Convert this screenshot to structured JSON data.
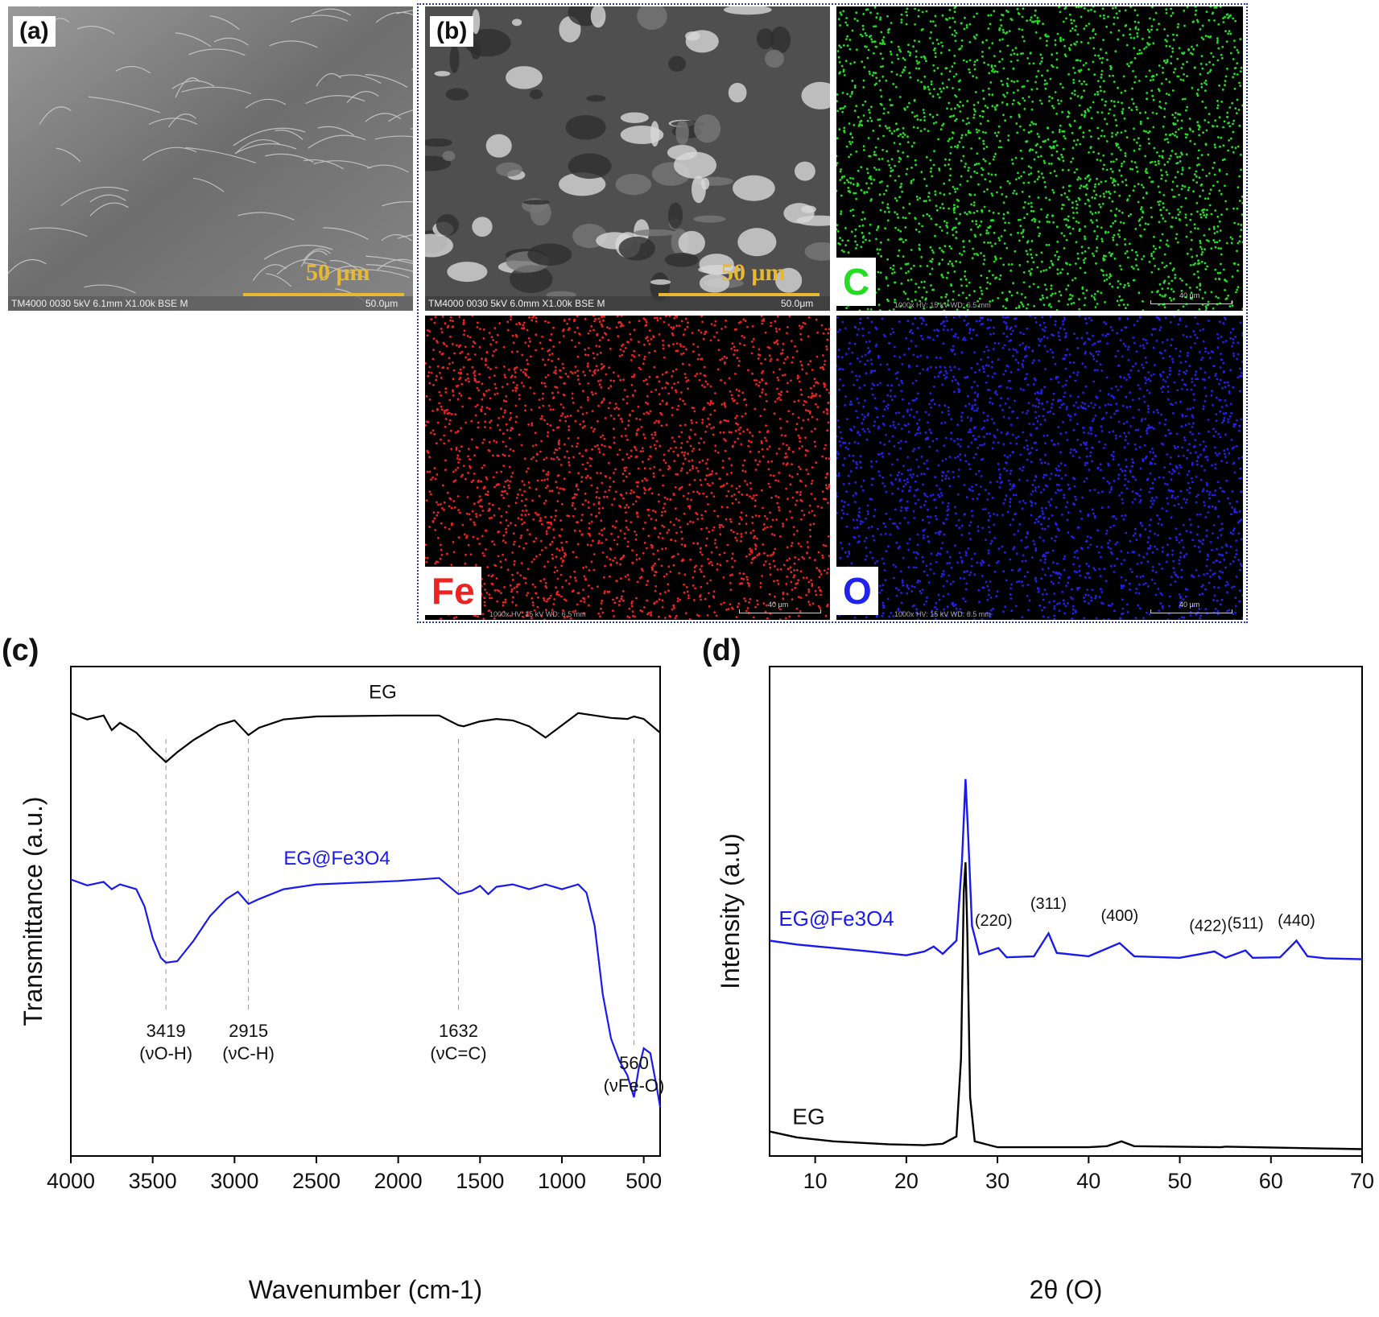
{
  "panel_a": {
    "label": "(a)",
    "scale_text": "50 μm",
    "meta": "TM4000 0030 5kV 6.1mm X1.00k BSE M",
    "meta_scale": "50.0μm"
  },
  "panel_b": {
    "label": "(b)",
    "sem": {
      "scale_text": "50 μm",
      "meta": "TM4000 0030 5kV 6.0mm X1.00k BSE M",
      "meta_scale": "50.0μm"
    },
    "maps": [
      {
        "element": "C",
        "color": "#22dd22",
        "scale": "40 μm",
        "meta": "1000x   HV: 15 kV   WD: 6.5 mm"
      },
      {
        "element": "Fe",
        "color": "#ee2222",
        "scale": "40 μm",
        "meta": "1000x   HV: 15 kV   WD: 6.5 mm"
      },
      {
        "element": "O",
        "color": "#2222ee",
        "scale": "40 μm",
        "meta": "1000x   HV: 15 kV   WD: 6.5 mm"
      }
    ]
  },
  "chart_data": [
    {
      "panel_label": "(c)",
      "type": "line",
      "xlabel": "Wavenumber (cm-1)",
      "ylabel": "Transmittance (a.u.)",
      "xlim": [
        4000,
        400
      ],
      "xticks": [
        4000,
        3500,
        3000,
        2500,
        2000,
        1500,
        1000,
        500
      ],
      "series": [
        {
          "name": "EG",
          "color": "#000000",
          "points": [
            [
              4000,
              0.905
            ],
            [
              3900,
              0.892
            ],
            [
              3800,
              0.9
            ],
            [
              3750,
              0.87
            ],
            [
              3700,
              0.885
            ],
            [
              3600,
              0.865
            ],
            [
              3500,
              0.83
            ],
            [
              3419,
              0.805
            ],
            [
              3350,
              0.825
            ],
            [
              3250,
              0.85
            ],
            [
              3100,
              0.88
            ],
            [
              3000,
              0.89
            ],
            [
              2915,
              0.86
            ],
            [
              2850,
              0.875
            ],
            [
              2700,
              0.892
            ],
            [
              2500,
              0.898
            ],
            [
              2000,
              0.9
            ],
            [
              1750,
              0.9
            ],
            [
              1632,
              0.88
            ],
            [
              1600,
              0.878
            ],
            [
              1500,
              0.888
            ],
            [
              1400,
              0.893
            ],
            [
              1300,
              0.89
            ],
            [
              1200,
              0.878
            ],
            [
              1100,
              0.855
            ],
            [
              1000,
              0.88
            ],
            [
              900,
              0.905
            ],
            [
              800,
              0.9
            ],
            [
              700,
              0.895
            ],
            [
              600,
              0.893
            ],
            [
              560,
              0.898
            ],
            [
              500,
              0.893
            ],
            [
              400,
              0.865
            ]
          ]
        },
        {
          "name": "EG@Fe3O4",
          "color": "#1a1aee",
          "points": [
            [
              4000,
              0.565
            ],
            [
              3900,
              0.553
            ],
            [
              3800,
              0.56
            ],
            [
              3750,
              0.545
            ],
            [
              3700,
              0.555
            ],
            [
              3600,
              0.545
            ],
            [
              3550,
              0.51
            ],
            [
              3500,
              0.445
            ],
            [
              3450,
              0.405
            ],
            [
              3419,
              0.395
            ],
            [
              3350,
              0.398
            ],
            [
              3250,
              0.44
            ],
            [
              3150,
              0.49
            ],
            [
              3050,
              0.525
            ],
            [
              2980,
              0.54
            ],
            [
              2915,
              0.515
            ],
            [
              2850,
              0.525
            ],
            [
              2700,
              0.545
            ],
            [
              2500,
              0.555
            ],
            [
              2000,
              0.562
            ],
            [
              1750,
              0.568
            ],
            [
              1632,
              0.535
            ],
            [
              1550,
              0.542
            ],
            [
              1500,
              0.552
            ],
            [
              1450,
              0.535
            ],
            [
              1400,
              0.55
            ],
            [
              1300,
              0.555
            ],
            [
              1200,
              0.545
            ],
            [
              1100,
              0.555
            ],
            [
              1000,
              0.545
            ],
            [
              900,
              0.555
            ],
            [
              850,
              0.538
            ],
            [
              800,
              0.47
            ],
            [
              750,
              0.33
            ],
            [
              700,
              0.24
            ],
            [
              650,
              0.195
            ],
            [
              600,
              0.165
            ],
            [
              560,
              0.12
            ],
            [
              530,
              0.18
            ],
            [
              500,
              0.22
            ],
            [
              460,
              0.21
            ],
            [
              420,
              0.14
            ],
            [
              400,
              0.1
            ]
          ]
        }
      ],
      "series_labels": [
        "EG",
        "EG@Fe3O4"
      ],
      "annotations": [
        {
          "x": 3419,
          "text": "3419",
          "mode": "(νO-H)"
        },
        {
          "x": 2915,
          "text": "2915",
          "mode": "(νC-H)"
        },
        {
          "x": 1632,
          "text": "1632",
          "mode": "(νC=C)"
        },
        {
          "x": 560,
          "text": "560",
          "mode": "(νFe-O)"
        }
      ]
    },
    {
      "panel_label": "(d)",
      "type": "line",
      "xlabel": "2θ (O)",
      "ylabel": "Intensity (a.u)",
      "xlim": [
        5,
        70
      ],
      "xticks": [
        10,
        20,
        30,
        40,
        50,
        60,
        70
      ],
      "series": [
        {
          "name": "EG",
          "color": "#000000",
          "points": [
            [
              5,
              0.05
            ],
            [
              8,
              0.038
            ],
            [
              12,
              0.03
            ],
            [
              18,
              0.024
            ],
            [
              22,
              0.022
            ],
            [
              24,
              0.025
            ],
            [
              25.5,
              0.04
            ],
            [
              26.0,
              0.2
            ],
            [
              26.3,
              0.54
            ],
            [
              26.5,
              0.6
            ],
            [
              26.7,
              0.45
            ],
            [
              27.0,
              0.12
            ],
            [
              27.5,
              0.03
            ],
            [
              30,
              0.018
            ],
            [
              40,
              0.018
            ],
            [
              42,
              0.02
            ],
            [
              43.6,
              0.03
            ],
            [
              45,
              0.02
            ],
            [
              54.5,
              0.018
            ],
            [
              55,
              0.019
            ],
            [
              70,
              0.014
            ]
          ]
        },
        {
          "name": "EG@Fe3O4",
          "color": "#1a1aee",
          "points": [
            [
              5,
              0.44
            ],
            [
              8,
              0.432
            ],
            [
              12,
              0.425
            ],
            [
              16,
              0.418
            ],
            [
              20,
              0.41
            ],
            [
              22,
              0.418
            ],
            [
              23,
              0.428
            ],
            [
              24,
              0.413
            ],
            [
              25.5,
              0.44
            ],
            [
              26.1,
              0.6
            ],
            [
              26.5,
              0.77
            ],
            [
              26.8,
              0.65
            ],
            [
              27.2,
              0.47
            ],
            [
              28,
              0.412
            ],
            [
              30.1,
              0.425
            ],
            [
              31,
              0.406
            ],
            [
              34,
              0.408
            ],
            [
              35.6,
              0.455
            ],
            [
              36.5,
              0.415
            ],
            [
              40,
              0.408
            ],
            [
              43.4,
              0.435
            ],
            [
              45,
              0.408
            ],
            [
              50,
              0.405
            ],
            [
              53.8,
              0.418
            ],
            [
              55,
              0.405
            ],
            [
              57.2,
              0.42
            ],
            [
              58,
              0.405
            ],
            [
              61,
              0.406
            ],
            [
              62.8,
              0.44
            ],
            [
              64,
              0.408
            ],
            [
              66,
              0.404
            ],
            [
              70,
              0.402
            ]
          ]
        }
      ],
      "series_labels": [
        "EG",
        "EG@Fe3O4"
      ],
      "peak_labels": [
        {
          "x": 30.1,
          "text": "(220)"
        },
        {
          "x": 35.6,
          "text": "(311)"
        },
        {
          "x": 43.4,
          "text": "(400)"
        },
        {
          "x": 53.8,
          "text": "(422)"
        },
        {
          "x": 57.2,
          "text": "(511)"
        },
        {
          "x": 62.8,
          "text": "(440)"
        }
      ]
    }
  ]
}
